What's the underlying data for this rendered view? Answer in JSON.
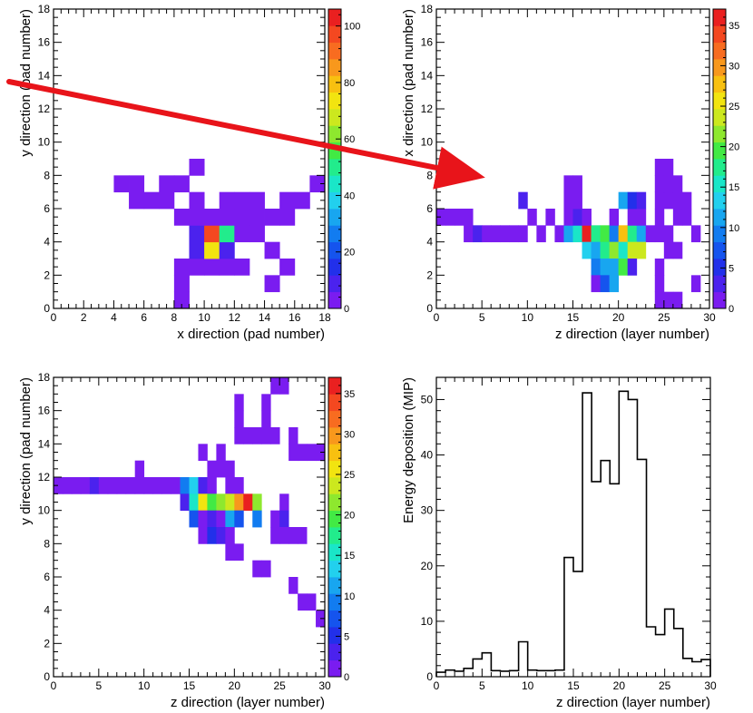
{
  "colors": {
    "arrow": "#e8141a",
    "frame": "#000000",
    "palette": [
      "#7a1cf0",
      "#4b22ee",
      "#2230ea",
      "#1554ee",
      "#127cf0",
      "#18a6f0",
      "#22d0ee",
      "#1ae6c8",
      "#22ec8c",
      "#42ea44",
      "#8ee82e",
      "#cce81e",
      "#f2e410",
      "#f8c010",
      "#f8981c",
      "#f86c20",
      "#f44820",
      "#ea2020"
    ]
  },
  "chart_data": [
    {
      "type": "heatmap",
      "title": "",
      "xlabel": "x direction (pad number)",
      "ylabel": "y direction (pad number)",
      "xlim": [
        0,
        18
      ],
      "ylim": [
        0,
        18
      ],
      "xticks": [
        "0",
        "2",
        "4",
        "6",
        "8",
        "10",
        "12",
        "14",
        "16",
        "18"
      ],
      "yticks": [
        "0",
        "2",
        "4",
        "6",
        "8",
        "10",
        "12",
        "14",
        "16",
        "18"
      ],
      "zlim": [
        0,
        106
      ],
      "zticks": [
        "0",
        "20",
        "40",
        "60",
        "80",
        "100"
      ],
      "cells": [
        [
          8,
          0,
          1
        ],
        [
          8,
          1,
          1
        ],
        [
          8,
          2,
          2
        ],
        [
          9,
          2,
          2
        ],
        [
          10,
          2,
          3
        ],
        [
          11,
          2,
          2
        ],
        [
          12,
          2,
          3
        ],
        [
          14,
          1,
          1
        ],
        [
          15,
          2,
          1
        ],
        [
          9,
          3,
          8
        ],
        [
          10,
          3,
          75
        ],
        [
          11,
          3,
          8
        ],
        [
          14,
          3,
          1
        ],
        [
          9,
          4,
          10
        ],
        [
          10,
          4,
          95
        ],
        [
          11,
          4,
          48
        ],
        [
          12,
          4,
          2
        ],
        [
          13,
          4,
          1
        ],
        [
          8,
          5,
          1
        ],
        [
          9,
          5,
          2
        ],
        [
          10,
          5,
          3
        ],
        [
          11,
          5,
          2
        ],
        [
          12,
          5,
          2
        ],
        [
          13,
          5,
          1
        ],
        [
          14,
          5,
          3
        ],
        [
          15,
          5,
          2
        ],
        [
          5,
          6,
          1
        ],
        [
          6,
          6,
          1
        ],
        [
          7,
          6,
          1
        ],
        [
          9,
          6,
          2
        ],
        [
          11,
          6,
          1
        ],
        [
          12,
          6,
          1
        ],
        [
          13,
          6,
          1
        ],
        [
          15,
          6,
          1
        ],
        [
          16,
          6,
          1
        ],
        [
          4,
          7,
          1
        ],
        [
          5,
          7,
          1
        ],
        [
          7,
          7,
          1
        ],
        [
          8,
          7,
          1
        ],
        [
          17,
          7,
          1
        ],
        [
          9,
          8,
          1
        ]
      ]
    },
    {
      "type": "heatmap",
      "title": "",
      "xlabel": "z direction (layer number)",
      "ylabel": "x direction (pad number)",
      "xlim": [
        0,
        30
      ],
      "ylim": [
        0,
        18
      ],
      "xticks": [
        "0",
        "5",
        "10",
        "15",
        "20",
        "25",
        "30"
      ],
      "yticks": [
        "0",
        "2",
        "4",
        "6",
        "8",
        "10",
        "12",
        "14",
        "16",
        "18"
      ],
      "zlim": [
        0,
        37
      ],
      "zticks": [
        "0",
        "5",
        "10",
        "15",
        "20",
        "25",
        "30",
        "35"
      ],
      "cells": [
        [
          0,
          5,
          1
        ],
        [
          1,
          5,
          1
        ],
        [
          2,
          5,
          1
        ],
        [
          3,
          5,
          1
        ],
        [
          3,
          4,
          1
        ],
        [
          4,
          4,
          3
        ],
        [
          5,
          4,
          2
        ],
        [
          6,
          4,
          1
        ],
        [
          7,
          4,
          1
        ],
        [
          8,
          4,
          1
        ],
        [
          9,
          4,
          1
        ],
        [
          11,
          4,
          1
        ],
        [
          13,
          4,
          1
        ],
        [
          14,
          4,
          12
        ],
        [
          15,
          4,
          16
        ],
        [
          16,
          4,
          35
        ],
        [
          17,
          4,
          18
        ],
        [
          18,
          4,
          20
        ],
        [
          19,
          4,
          10
        ],
        [
          20,
          4,
          28
        ],
        [
          21,
          4,
          18
        ],
        [
          22,
          4,
          12
        ],
        [
          23,
          4,
          2
        ],
        [
          24,
          4,
          1
        ],
        [
          25,
          4,
          1
        ],
        [
          28,
          4,
          1
        ],
        [
          10,
          5,
          1
        ],
        [
          12,
          5,
          1
        ],
        [
          14,
          5,
          1
        ],
        [
          15,
          5,
          3
        ],
        [
          16,
          5,
          1
        ],
        [
          19,
          5,
          2
        ],
        [
          21,
          5,
          1
        ],
        [
          22,
          5,
          2
        ],
        [
          24,
          5,
          1
        ],
        [
          26,
          5,
          1
        ],
        [
          27,
          5,
          1
        ],
        [
          9,
          6,
          4
        ],
        [
          14,
          6,
          2
        ],
        [
          15,
          6,
          1
        ],
        [
          20,
          6,
          12
        ],
        [
          21,
          6,
          6
        ],
        [
          22,
          6,
          3
        ],
        [
          24,
          6,
          1
        ],
        [
          25,
          6,
          1
        ],
        [
          26,
          6,
          1
        ],
        [
          27,
          6,
          1
        ],
        [
          14,
          7,
          1
        ],
        [
          15,
          7,
          1
        ],
        [
          24,
          7,
          1
        ],
        [
          25,
          7,
          1
        ],
        [
          26,
          7,
          1
        ],
        [
          24,
          8,
          1
        ],
        [
          25,
          8,
          1
        ],
        [
          16,
          3,
          13
        ],
        [
          17,
          3,
          12
        ],
        [
          18,
          3,
          17
        ],
        [
          19,
          3,
          22
        ],
        [
          20,
          3,
          16
        ],
        [
          21,
          3,
          24
        ],
        [
          22,
          3,
          24
        ],
        [
          25,
          3,
          2
        ],
        [
          26,
          3,
          1
        ],
        [
          17,
          2,
          9
        ],
        [
          18,
          2,
          11
        ],
        [
          19,
          2,
          12
        ],
        [
          20,
          2,
          20
        ],
        [
          21,
          2,
          3
        ],
        [
          24,
          2,
          1
        ],
        [
          17,
          1,
          2
        ],
        [
          18,
          1,
          8
        ],
        [
          19,
          1,
          12
        ],
        [
          24,
          1,
          1
        ],
        [
          28,
          1,
          1
        ],
        [
          24,
          0,
          1
        ],
        [
          25,
          0,
          1
        ],
        [
          26,
          0,
          1
        ]
      ]
    },
    {
      "type": "heatmap",
      "title": "",
      "xlabel": "z direction (layer number)",
      "ylabel": "y direction (pad number)",
      "xlim": [
        0,
        30
      ],
      "ylim": [
        0,
        18
      ],
      "xticks": [
        "0",
        "5",
        "10",
        "15",
        "20",
        "25",
        "30"
      ],
      "yticks": [
        "0",
        "2",
        "4",
        "6",
        "8",
        "10",
        "12",
        "14",
        "16",
        "18"
      ],
      "zlim": [
        0,
        37
      ],
      "zticks": [
        "0",
        "5",
        "10",
        "15",
        "20",
        "25",
        "30",
        "35"
      ],
      "cells": [
        [
          0,
          11,
          1
        ],
        [
          1,
          11,
          1
        ],
        [
          2,
          11,
          1
        ],
        [
          3,
          11,
          1
        ],
        [
          4,
          11,
          3
        ],
        [
          5,
          11,
          2
        ],
        [
          6,
          11,
          1
        ],
        [
          7,
          11,
          1
        ],
        [
          8,
          11,
          1
        ],
        [
          9,
          11,
          1
        ],
        [
          10,
          11,
          1
        ],
        [
          11,
          11,
          1
        ],
        [
          12,
          11,
          1
        ],
        [
          13,
          11,
          1
        ],
        [
          14,
          11,
          10
        ],
        [
          15,
          11,
          14
        ],
        [
          16,
          11,
          3
        ],
        [
          17,
          11,
          1
        ],
        [
          19,
          11,
          1
        ],
        [
          20,
          11,
          1
        ],
        [
          9,
          12,
          1
        ],
        [
          14,
          10,
          4
        ],
        [
          15,
          10,
          16
        ],
        [
          16,
          10,
          26
        ],
        [
          17,
          10,
          20
        ],
        [
          18,
          10,
          21
        ],
        [
          19,
          10,
          24
        ],
        [
          20,
          10,
          30
        ],
        [
          21,
          10,
          36
        ],
        [
          22,
          10,
          22
        ],
        [
          25,
          10,
          1
        ],
        [
          15,
          9,
          8
        ],
        [
          16,
          9,
          2
        ],
        [
          17,
          9,
          4
        ],
        [
          18,
          9,
          1
        ],
        [
          19,
          9,
          12
        ],
        [
          20,
          9,
          8
        ],
        [
          22,
          9,
          9
        ],
        [
          24,
          9,
          1
        ],
        [
          25,
          9,
          4
        ],
        [
          16,
          8,
          1
        ],
        [
          17,
          8,
          5
        ],
        [
          18,
          8,
          3
        ],
        [
          19,
          8,
          2
        ],
        [
          24,
          8,
          1
        ],
        [
          25,
          8,
          1
        ],
        [
          26,
          8,
          1
        ],
        [
          27,
          8,
          1
        ],
        [
          17,
          12,
          1
        ],
        [
          18,
          12,
          1
        ],
        [
          19,
          12,
          2
        ],
        [
          16,
          13,
          1
        ],
        [
          18,
          13,
          1
        ],
        [
          26,
          13,
          1
        ],
        [
          27,
          13,
          1
        ],
        [
          28,
          13,
          1
        ],
        [
          29,
          13,
          1
        ],
        [
          20,
          14,
          1
        ],
        [
          21,
          14,
          1
        ],
        [
          22,
          14,
          1
        ],
        [
          23,
          14,
          1
        ],
        [
          24,
          14,
          1
        ],
        [
          26,
          14,
          1
        ],
        [
          20,
          15,
          1
        ],
        [
          23,
          15,
          1
        ],
        [
          20,
          16,
          1
        ],
        [
          23,
          16,
          1
        ],
        [
          24,
          17,
          1
        ],
        [
          25,
          17,
          1
        ],
        [
          19,
          7,
          1
        ],
        [
          20,
          7,
          1
        ],
        [
          22,
          6,
          1
        ],
        [
          23,
          6,
          1
        ],
        [
          26,
          5,
          1
        ],
        [
          27,
          4,
          1
        ],
        [
          28,
          4,
          1
        ],
        [
          29,
          3,
          1
        ]
      ]
    },
    {
      "type": "line",
      "title": "",
      "xlabel": "z direction (layer number)",
      "ylabel": "Energy deposition (MIP)",
      "xlim": [
        0,
        30
      ],
      "ylim": [
        0,
        54
      ],
      "xticks": [
        "0",
        "5",
        "10",
        "15",
        "20",
        "25",
        "30"
      ],
      "yticks": [
        "0",
        "10",
        "20",
        "30",
        "40",
        "50"
      ],
      "bin_edges": [
        0,
        1,
        2,
        3,
        4,
        5,
        6,
        7,
        8,
        9,
        10,
        11,
        12,
        13,
        14,
        15,
        16,
        17,
        18,
        19,
        20,
        21,
        22,
        23,
        24,
        25,
        26,
        27,
        28,
        29,
        30
      ],
      "values": [
        0.8,
        1.2,
        1.0,
        1.5,
        3.2,
        4.3,
        1.1,
        1.0,
        1.1,
        6.3,
        1.2,
        1.1,
        1.1,
        1.2,
        21.5,
        19.0,
        51.2,
        35.2,
        39.0,
        34.8,
        51.5,
        50.0,
        39.2,
        9.0,
        7.6,
        12.2,
        8.7,
        3.3,
        2.7,
        3.1
      ]
    }
  ],
  "arrow": {
    "from_plot": 0,
    "to_plot": 1
  }
}
